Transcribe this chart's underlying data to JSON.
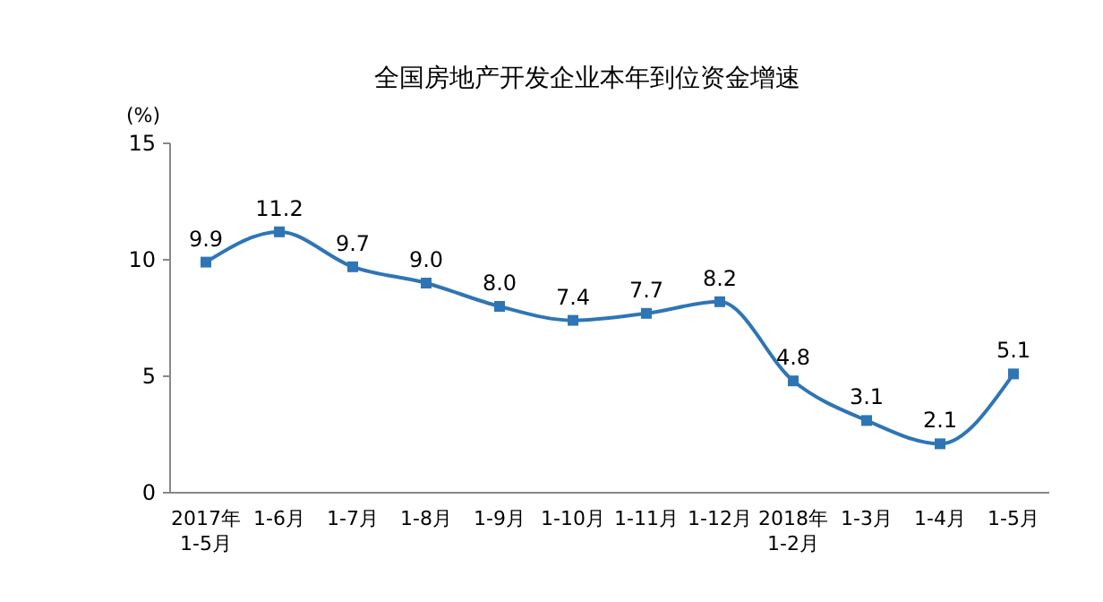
{
  "chart_data": {
    "type": "line",
    "title": "全国房地产开发企业本年到位资金增速",
    "ylabel": "(%)",
    "categories": [
      "2017年\n1-5月",
      "1-6月",
      "1-7月",
      "1-8月",
      "1-9月",
      "1-10月",
      "1-11月",
      "1-12月",
      "2018年\n1-2月",
      "1-3月",
      "1-4月",
      "1-5月"
    ],
    "series": [
      {
        "color": "#2e75b6",
        "values": [
          9.9,
          11.2,
          9.7,
          9.0,
          8.0,
          7.4,
          7.7,
          8.2,
          4.8,
          3.1,
          2.1,
          5.1
        ],
        "value_labels": [
          "9.9",
          "11.2",
          "9.7",
          "9.0",
          "8.0",
          "7.4",
          "7.7",
          "8.2",
          "4.8",
          "3.1",
          "2.1",
          "5.1"
        ]
      }
    ],
    "ylim": [
      0,
      15
    ],
    "yticks": [
      0,
      5,
      10,
      15
    ],
    "grid": false,
    "marker": "square",
    "line_style": "solid"
  }
}
